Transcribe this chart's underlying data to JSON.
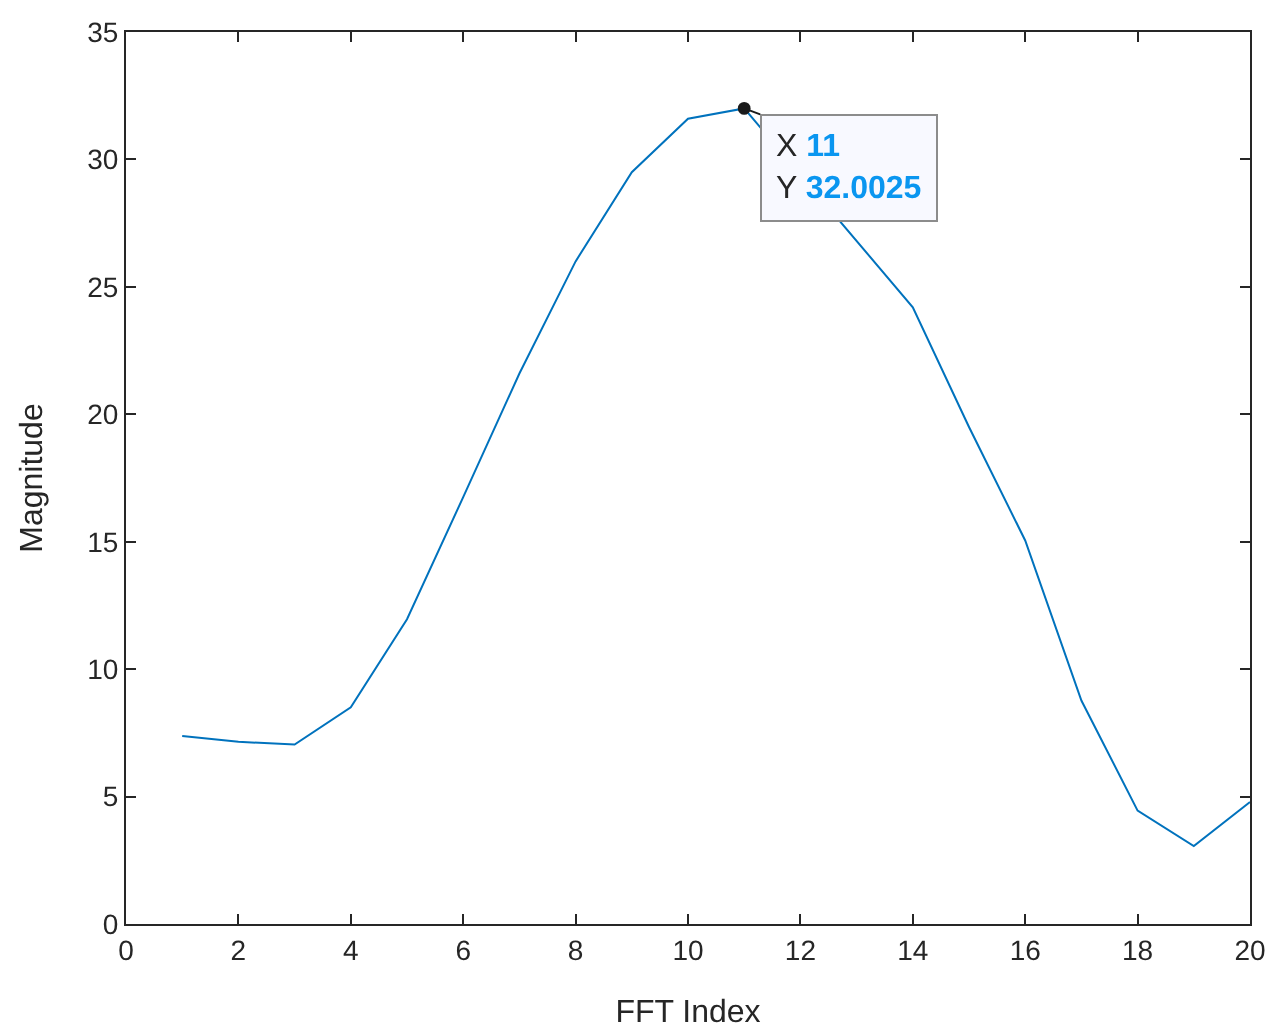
{
  "chart_data": {
    "type": "line",
    "xlabel": "FFT Index",
    "ylabel": "Magnitude",
    "x": [
      1,
      2,
      3,
      4,
      5,
      6,
      7,
      8,
      9,
      10,
      11,
      12,
      13,
      14,
      15,
      16,
      17,
      18,
      19,
      20
    ],
    "series": [
      {
        "color": "#0072bd",
        "values": [
          7.38,
          7.15,
          7.04,
          8.5,
          11.96,
          16.75,
          21.6,
          26.0,
          29.5,
          31.6,
          32.0025,
          null,
          null,
          24.2,
          19.5,
          15.05,
          8.77,
          4.45,
          3.06,
          4.79
        ]
      }
    ],
    "xlim": [
      0,
      20
    ],
    "xticks": [
      0,
      2,
      4,
      6,
      8,
      10,
      12,
      14,
      16,
      18,
      20
    ],
    "ylim": [
      0,
      35
    ],
    "yticks": [
      0,
      5,
      10,
      15,
      20,
      25,
      30,
      35
    ],
    "grid": false,
    "marker": "none",
    "line_style": "solid",
    "annotations": [
      {
        "text": "X 11\nY 32.0025",
        "x": 11,
        "y": 32.0025
      }
    ]
  }
}
